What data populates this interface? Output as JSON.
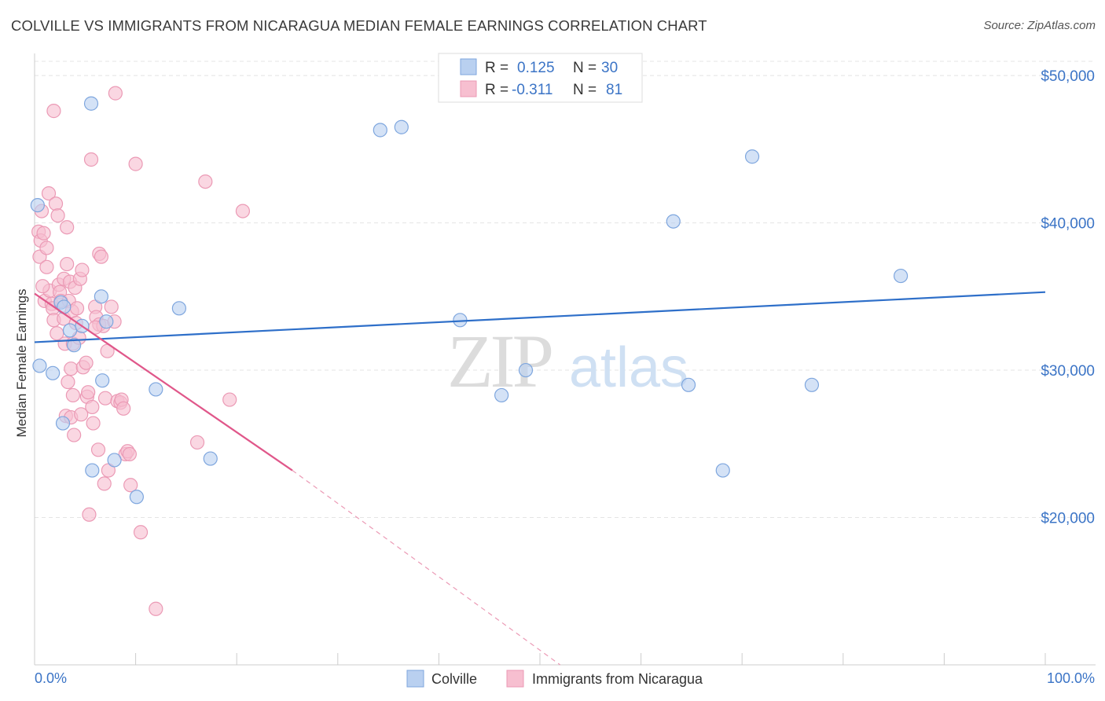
{
  "title": "COLVILLE VS IMMIGRANTS FROM NICARAGUA MEDIAN FEMALE EARNINGS CORRELATION CHART",
  "source": "Source: ZipAtlas.com",
  "watermark": {
    "zip": "ZIP",
    "atlas": "atlas"
  },
  "colors": {
    "blue_fill": "#b9d0f0",
    "blue_stroke": "#7ea6de",
    "blue_line": "#2e6fc9",
    "pink_fill": "#f7bfd0",
    "pink_stroke": "#eb9ab5",
    "pink_line": "#e0578a",
    "axis_text": "#3b74c6",
    "grid": "#e4e4e4"
  },
  "legend": {
    "rows": [
      {
        "r_label": "R =",
        "r_value": "0.125",
        "n_label": "N =",
        "n_value": "30"
      },
      {
        "r_label": "R =",
        "r_value": "-0.311",
        "n_label": "N =",
        "n_value": "81"
      }
    ]
  },
  "chart_data": {
    "type": "scatter",
    "title": "COLVILLE VS IMMIGRANTS FROM NICARAGUA MEDIAN FEMALE EARNINGS CORRELATION CHART",
    "xlabel": "",
    "ylabel": "Median Female Earnings",
    "xlim": [
      0,
      100
    ],
    "ylim": [
      10000,
      51500
    ],
    "x_tick_labels": [
      "0.0%",
      "100.0%"
    ],
    "y_ticks": [
      20000,
      30000,
      40000,
      50000
    ],
    "y_tick_labels": [
      "$20,000",
      "$30,000",
      "$40,000",
      "$50,000"
    ],
    "grid": true,
    "legend_position": "top-center",
    "series": [
      {
        "name": "Colville",
        "color": "#b9d0f0",
        "points": [
          [
            0.3,
            41200
          ],
          [
            0.5,
            30300
          ],
          [
            1.8,
            29800
          ],
          [
            2.6,
            34600
          ],
          [
            2.9,
            34300
          ],
          [
            2.8,
            26400
          ],
          [
            3.5,
            32700
          ],
          [
            3.9,
            31700
          ],
          [
            4.7,
            33000
          ],
          [
            5.6,
            48100
          ],
          [
            5.7,
            23200
          ],
          [
            6.6,
            35000
          ],
          [
            6.7,
            29300
          ],
          [
            7.1,
            33300
          ],
          [
            7.9,
            23900
          ],
          [
            10.1,
            21400
          ],
          [
            12.0,
            28700
          ],
          [
            14.3,
            34200
          ],
          [
            17.4,
            24000
          ],
          [
            34.2,
            46300
          ],
          [
            36.3,
            46500
          ],
          [
            42.1,
            33400
          ],
          [
            46.2,
            28300
          ],
          [
            48.6,
            30000
          ],
          [
            63.2,
            40100
          ],
          [
            64.7,
            29000
          ],
          [
            68.1,
            23200
          ],
          [
            71.0,
            44500
          ],
          [
            76.9,
            29000
          ],
          [
            85.7,
            36400
          ]
        ],
        "trend": {
          "x": [
            0,
            100
          ],
          "y": [
            31900,
            35300
          ],
          "style": "solid"
        }
      },
      {
        "name": "Immigrants from Nicaragua",
        "color": "#f7bfd0",
        "points": [
          [
            0.4,
            39400
          ],
          [
            0.5,
            37700
          ],
          [
            0.6,
            38800
          ],
          [
            0.7,
            40800
          ],
          [
            0.9,
            39300
          ],
          [
            1.0,
            34700
          ],
          [
            1.2,
            38300
          ],
          [
            1.2,
            37000
          ],
          [
            1.4,
            42000
          ],
          [
            1.5,
            35400
          ],
          [
            1.7,
            34500
          ],
          [
            1.8,
            34200
          ],
          [
            1.9,
            33400
          ],
          [
            1.9,
            47600
          ],
          [
            2.1,
            41300
          ],
          [
            2.2,
            32500
          ],
          [
            2.3,
            40500
          ],
          [
            2.4,
            35800
          ],
          [
            2.5,
            35300
          ],
          [
            2.6,
            34700
          ],
          [
            2.9,
            33500
          ],
          [
            2.9,
            36200
          ],
          [
            3.0,
            31800
          ],
          [
            3.1,
            26900
          ],
          [
            3.2,
            39700
          ],
          [
            3.2,
            37200
          ],
          [
            3.3,
            29200
          ],
          [
            3.4,
            34700
          ],
          [
            3.5,
            36000
          ],
          [
            3.6,
            30100
          ],
          [
            3.6,
            26800
          ],
          [
            3.7,
            34000
          ],
          [
            3.8,
            31800
          ],
          [
            3.8,
            28300
          ],
          [
            3.9,
            25600
          ],
          [
            4.0,
            35600
          ],
          [
            4.1,
            33200
          ],
          [
            4.2,
            34200
          ],
          [
            4.4,
            32200
          ],
          [
            4.5,
            36200
          ],
          [
            4.6,
            27000
          ],
          [
            4.7,
            36800
          ],
          [
            4.8,
            30200
          ],
          [
            5.1,
            30500
          ],
          [
            5.2,
            28200
          ],
          [
            5.3,
            28500
          ],
          [
            5.4,
            20200
          ],
          [
            5.6,
            44300
          ],
          [
            5.7,
            27500
          ],
          [
            5.8,
            26400
          ],
          [
            6.0,
            34300
          ],
          [
            6.1,
            33600
          ],
          [
            6.3,
            24600
          ],
          [
            6.4,
            33100
          ],
          [
            6.4,
            37900
          ],
          [
            6.6,
            37700
          ],
          [
            6.8,
            33000
          ],
          [
            6.9,
            22300
          ],
          [
            7.0,
            28100
          ],
          [
            7.2,
            31300
          ],
          [
            7.3,
            23200
          ],
          [
            7.6,
            34300
          ],
          [
            7.9,
            33300
          ],
          [
            8.0,
            48800
          ],
          [
            8.2,
            27900
          ],
          [
            8.5,
            27800
          ],
          [
            8.6,
            28000
          ],
          [
            8.8,
            27400
          ],
          [
            9.0,
            24300
          ],
          [
            9.2,
            24500
          ],
          [
            9.4,
            24300
          ],
          [
            9.5,
            22200
          ],
          [
            10.0,
            44000
          ],
          [
            10.5,
            19000
          ],
          [
            12.0,
            13800
          ],
          [
            16.1,
            25100
          ],
          [
            16.9,
            42800
          ],
          [
            19.3,
            28000
          ],
          [
            20.6,
            40800
          ],
          [
            6.0,
            32900
          ],
          [
            0.8,
            35700
          ]
        ],
        "trend": {
          "x": [
            0,
            25.5
          ],
          "y": [
            35200,
            23200
          ],
          "style": "solid",
          "dashed_extension": {
            "x": [
              25.5,
              52
            ],
            "y": [
              23200,
              10000
            ]
          }
        }
      }
    ]
  }
}
